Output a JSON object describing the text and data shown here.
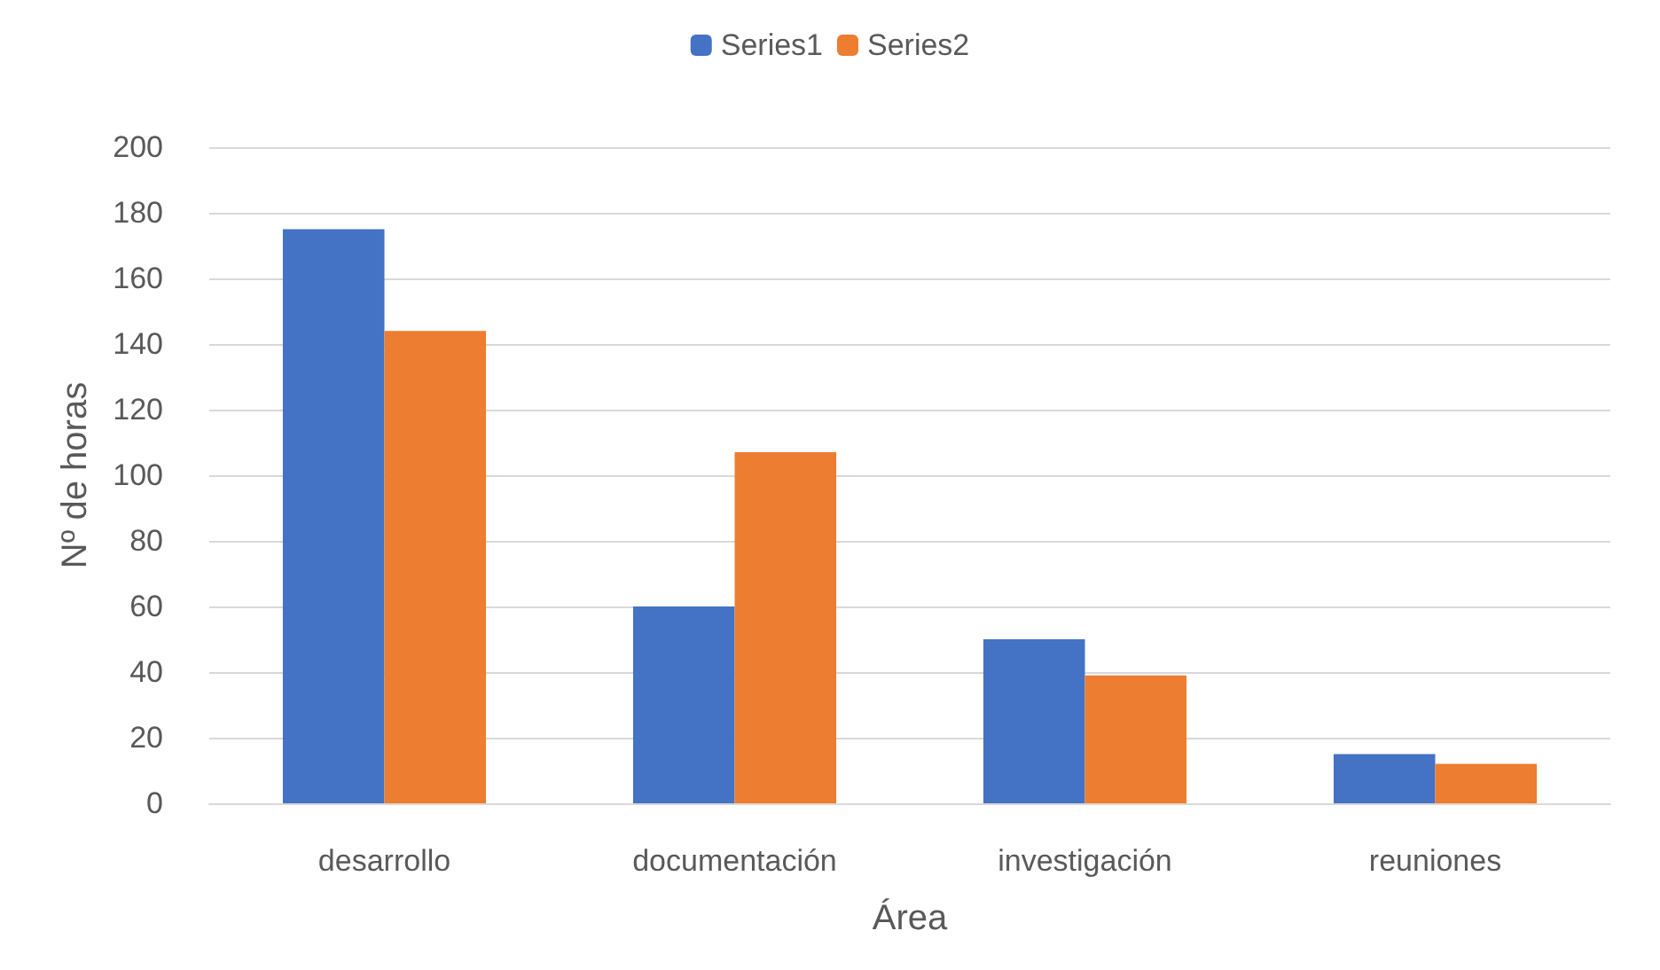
{
  "chart_data": {
    "type": "bar",
    "xlabel": "Área",
    "ylabel": "Nº de horas",
    "categories": [
      "desarrollo",
      "documentación",
      "investigación",
      "reuniones"
    ],
    "series": [
      {
        "name": "Series1",
        "color": "#4472c4",
        "values": [
          175,
          60,
          50,
          15
        ]
      },
      {
        "name": "Series2",
        "color": "#ed7d31",
        "values": [
          144,
          107,
          39,
          12
        ]
      }
    ],
    "ylim": [
      0,
      200
    ],
    "yticks": [
      0,
      20,
      40,
      60,
      80,
      100,
      120,
      140,
      160,
      180,
      200
    ],
    "grid": "y",
    "legend": "top"
  }
}
